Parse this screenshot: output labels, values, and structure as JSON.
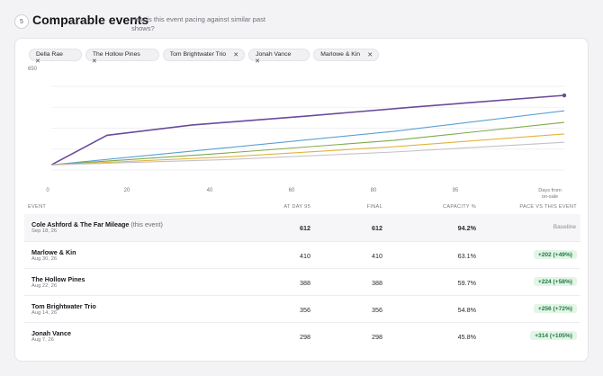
{
  "section": {
    "step": "5",
    "title": "Comparable events",
    "subtitle": "How is this event pacing against similar past shows?"
  },
  "chips": [
    {
      "label": "Della Rae",
      "remove": "✕"
    },
    {
      "label": "The Hollow Pines",
      "remove": "✕"
    },
    {
      "label": "Tom Brightwater Trio",
      "remove": "✕"
    },
    {
      "label": "Jonah Vance",
      "remove": "✕"
    },
    {
      "label": "Marlowe & Kin",
      "remove": "✕"
    }
  ],
  "chart_data": {
    "type": "line",
    "y_top_label": "650",
    "ylim": [
      0,
      650
    ],
    "xlim": [
      0,
      120
    ],
    "x_ticks": [
      "0",
      "20",
      "40",
      "60",
      "80",
      "95"
    ],
    "x_axis_label": "Days from on-sale",
    "grid": true,
    "series": [
      {
        "color": "#6b4a9a",
        "points": [
          [
            0,
            40
          ],
          [
            13,
            270
          ],
          [
            33,
            350
          ],
          [
            60,
            420
          ],
          [
            85,
            490
          ],
          [
            120,
            580
          ]
        ]
      },
      {
        "color": "#5aa0d2",
        "points": [
          [
            0,
            40
          ],
          [
            40,
            170
          ],
          [
            80,
            300
          ],
          [
            120,
            460
          ]
        ]
      },
      {
        "color": "#7faa4a",
        "points": [
          [
            0,
            40
          ],
          [
            40,
            130
          ],
          [
            80,
            230
          ],
          [
            120,
            370
          ]
        ]
      },
      {
        "color": "#e2b23e",
        "points": [
          [
            0,
            40
          ],
          [
            40,
            100
          ],
          [
            80,
            180
          ],
          [
            120,
            280
          ]
        ]
      },
      {
        "color": "#c2c2c8",
        "points": [
          [
            0,
            40
          ],
          [
            40,
            80
          ],
          [
            80,
            140
          ],
          [
            120,
            215
          ]
        ]
      }
    ]
  },
  "table": {
    "headers": {
      "event": "Event",
      "at_day": "At day 95",
      "final": "Final",
      "capacity": "Capacity %",
      "pace": "Pace vs this event"
    },
    "rows": [
      {
        "name": "Cole Ashford & The Far Mileage",
        "note": "(this event)",
        "date": "Sep 18, 26",
        "at_day": "612",
        "final": "612",
        "capacity": "94.2%",
        "pace": "Baseline"
      },
      {
        "name": "Marlowe & Kin",
        "date": "Aug 30, 26",
        "at_day": "410",
        "final": "410",
        "capacity": "63.1%",
        "pace": "+202 (+49%)"
      },
      {
        "name": "The Hollow Pines",
        "date": "Aug 22, 26",
        "at_day": "388",
        "final": "388",
        "capacity": "59.7%",
        "pace": "+224 (+58%)"
      },
      {
        "name": "Tom Brightwater Trio",
        "date": "Aug 14, 26",
        "at_day": "356",
        "final": "356",
        "capacity": "54.8%",
        "pace": "+256 (+72%)"
      },
      {
        "name": "Jonah Vance",
        "date": "Aug 7, 26",
        "at_day": "298",
        "final": "298",
        "capacity": "45.8%",
        "pace": "+314 (+105%)"
      }
    ]
  }
}
